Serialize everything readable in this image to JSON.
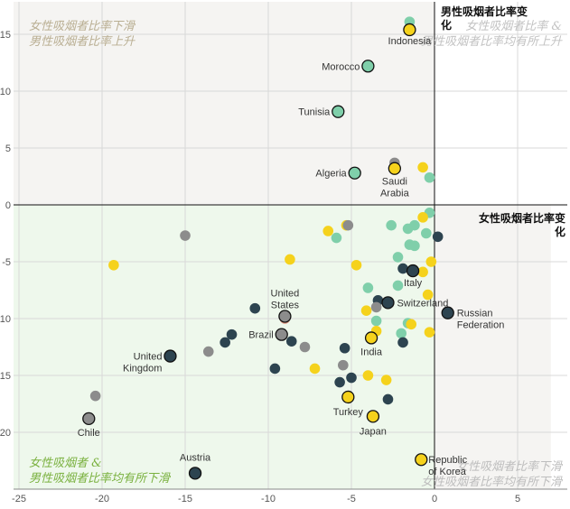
{
  "chart_data": {
    "type": "scatter",
    "title": "",
    "xlabel": "女性吸烟者比率变化",
    "ylabel": "男性吸烟者比率变化",
    "xlim": [
      -25,
      8
    ],
    "ylim": [
      -25,
      17
    ],
    "x_ticks": [
      "-25",
      "-20",
      "-15",
      "-10",
      "-5",
      "0",
      "5"
    ],
    "y_ticks": [
      "15",
      "10",
      "5",
      "0",
      "-5",
      "-10",
      "-15",
      "-20"
    ],
    "grid": true,
    "quadrant_notes": {
      "top_left": "女性吸烟者比率下滑 男性吸烟者比率上升",
      "top_right": "女性吸烟者比率 & 男性吸烟者比率均有所上升",
      "bottom_left": "女性吸烟者 & 男性吸烟者比率均有所下滑",
      "bottom_right": "女性吸烟者比率下滑 女性吸烟者比率均有所下滑"
    },
    "colors": {
      "yellow": "#f5d21c",
      "teal": "#7fcfaa",
      "dark": "#2d4450",
      "gray": "#8c8c8c",
      "salmon": "#e89a85",
      "quadrant_green": "#eef8ec",
      "quadrant_gray": "#f5f4f2",
      "top_left_note": "#b9ae92",
      "top_right_note": "#c2c2c2",
      "bottom_left_note": "#7ab13f",
      "bottom_right_note": "#bdbdbd"
    },
    "points": [
      {
        "x": -1.5,
        "y": 15.4,
        "c": "yellow",
        "label": "Indonesia",
        "hl": true
      },
      {
        "x": -1.5,
        "y": 16.1,
        "c": "teal"
      },
      {
        "x": -4.0,
        "y": 12.2,
        "c": "teal",
        "label": "Morocco",
        "hl": true
      },
      {
        "x": -5.8,
        "y": 8.2,
        "c": "teal",
        "label": "Tunisia",
        "hl": true
      },
      {
        "x": -4.8,
        "y": 2.8,
        "c": "teal",
        "label": "Algeria",
        "hl": true
      },
      {
        "x": -2.4,
        "y": 3.2,
        "c": "yellow",
        "label": "Saudi Arabia",
        "hl": true
      },
      {
        "x": -2.4,
        "y": 3.7,
        "c": "gray"
      },
      {
        "x": -0.7,
        "y": 3.3,
        "c": "yellow"
      },
      {
        "x": -0.3,
        "y": 2.4,
        "c": "teal"
      },
      {
        "x": -0.3,
        "y": -0.7,
        "c": "teal"
      },
      {
        "x": -0.7,
        "y": -1.1,
        "c": "yellow"
      },
      {
        "x": -1.2,
        "y": -1.8,
        "c": "teal"
      },
      {
        "x": -1.6,
        "y": -2.1,
        "c": "teal"
      },
      {
        "x": -2.6,
        "y": -1.8,
        "c": "teal"
      },
      {
        "x": -5.3,
        "y": -1.8,
        "c": "yellow"
      },
      {
        "x": -5.2,
        "y": -1.8,
        "c": "gray"
      },
      {
        "x": -6.4,
        "y": -2.3,
        "c": "yellow"
      },
      {
        "x": -5.9,
        "y": -2.9,
        "c": "teal"
      },
      {
        "x": -0.5,
        "y": -2.5,
        "c": "teal"
      },
      {
        "x": 0.2,
        "y": -2.8,
        "c": "dark"
      },
      {
        "x": -1.5,
        "y": -3.5,
        "c": "teal"
      },
      {
        "x": -1.2,
        "y": -3.6,
        "c": "teal"
      },
      {
        "x": -2.2,
        "y": -4.6,
        "c": "teal"
      },
      {
        "x": -0.2,
        "y": -5.0,
        "c": "yellow"
      },
      {
        "x": -15.0,
        "y": -2.7,
        "c": "gray"
      },
      {
        "x": -19.3,
        "y": -5.3,
        "c": "yellow"
      },
      {
        "x": -8.7,
        "y": -4.8,
        "c": "yellow"
      },
      {
        "x": -4.7,
        "y": -5.3,
        "c": "yellow"
      },
      {
        "x": -1.3,
        "y": -5.8,
        "c": "dark",
        "label": "Italy",
        "hl": true
      },
      {
        "x": -1.9,
        "y": -5.6,
        "c": "dark"
      },
      {
        "x": -0.7,
        "y": -5.9,
        "c": "yellow"
      },
      {
        "x": -2.2,
        "y": -7.1,
        "c": "teal"
      },
      {
        "x": -4.0,
        "y": -7.3,
        "c": "teal"
      },
      {
        "x": -0.4,
        "y": -7.9,
        "c": "yellow"
      },
      {
        "x": -2.8,
        "y": -8.6,
        "c": "dark",
        "label": "Switzerland",
        "hl": true
      },
      {
        "x": -3.4,
        "y": -8.4,
        "c": "dark"
      },
      {
        "x": -3.5,
        "y": -9.0,
        "c": "gray"
      },
      {
        "x": -4.1,
        "y": -9.3,
        "c": "yellow"
      },
      {
        "x": -10.8,
        "y": -9.1,
        "c": "dark"
      },
      {
        "x": -9.0,
        "y": -10.0,
        "c": "salmon"
      },
      {
        "x": -9.0,
        "y": -9.8,
        "c": "gray",
        "label": "United States",
        "hl": true
      },
      {
        "x": 0.8,
        "y": -9.5,
        "c": "dark",
        "label": "Russian Federation",
        "hl": true
      },
      {
        "x": -1.6,
        "y": -10.4,
        "c": "teal"
      },
      {
        "x": -1.4,
        "y": -10.5,
        "c": "yellow"
      },
      {
        "x": -3.5,
        "y": -10.2,
        "c": "teal"
      },
      {
        "x": -3.5,
        "y": -11.1,
        "c": "yellow"
      },
      {
        "x": -2.0,
        "y": -11.3,
        "c": "teal"
      },
      {
        "x": -0.3,
        "y": -11.2,
        "c": "yellow"
      },
      {
        "x": -3.8,
        "y": -11.7,
        "c": "yellow",
        "label": "India",
        "hl": true
      },
      {
        "x": -9.2,
        "y": -11.4,
        "c": "gray",
        "label": "Brazil",
        "hl": true
      },
      {
        "x": -8.6,
        "y": -12.0,
        "c": "dark"
      },
      {
        "x": -7.8,
        "y": -12.5,
        "c": "gray"
      },
      {
        "x": -12.2,
        "y": -11.4,
        "c": "dark"
      },
      {
        "x": -12.6,
        "y": -12.1,
        "c": "dark"
      },
      {
        "x": -13.6,
        "y": -12.9,
        "c": "gray"
      },
      {
        "x": -5.4,
        "y": -12.6,
        "c": "dark"
      },
      {
        "x": -1.9,
        "y": -12.1,
        "c": "dark"
      },
      {
        "x": -15.9,
        "y": -13.3,
        "c": "dark",
        "label": "United Kingdom",
        "hl": true
      },
      {
        "x": -9.6,
        "y": -14.4,
        "c": "dark"
      },
      {
        "x": -7.2,
        "y": -14.4,
        "c": "yellow"
      },
      {
        "x": -5.5,
        "y": -14.1,
        "c": "gray"
      },
      {
        "x": -5.0,
        "y": -15.2,
        "c": "dark"
      },
      {
        "x": -5.7,
        "y": -15.6,
        "c": "dark"
      },
      {
        "x": -4.0,
        "y": -15.0,
        "c": "yellow"
      },
      {
        "x": -2.9,
        "y": -15.4,
        "c": "yellow"
      },
      {
        "x": -20.4,
        "y": -16.8,
        "c": "gray"
      },
      {
        "x": -2.8,
        "y": -17.1,
        "c": "dark"
      },
      {
        "x": -5.2,
        "y": -16.9,
        "c": "yellow",
        "label": "Turkey",
        "hl": true
      },
      {
        "x": -3.7,
        "y": -18.6,
        "c": "yellow",
        "label": "Japan",
        "hl": true
      },
      {
        "x": -20.8,
        "y": -18.8,
        "c": "gray",
        "label": "Chile",
        "hl": true
      },
      {
        "x": -0.8,
        "y": -22.4,
        "c": "yellow",
        "label": "Republic of Korea",
        "hl": true
      },
      {
        "x": -14.4,
        "y": -23.6,
        "c": "dark",
        "label": "Austria",
        "hl": true
      }
    ]
  }
}
